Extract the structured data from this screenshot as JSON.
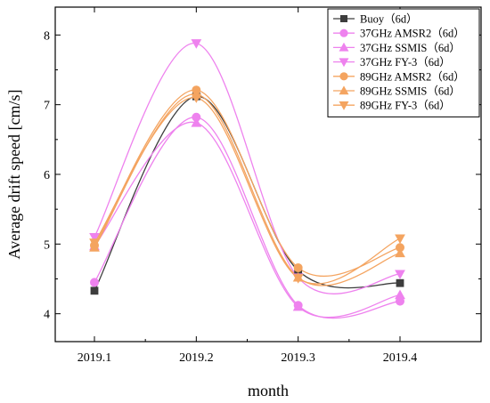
{
  "chart_data": {
    "type": "line",
    "title": "",
    "xlabel": "month",
    "ylabel": "Average drift speed [cm/s]",
    "categories": [
      "2019.1",
      "2019.2",
      "2019.3",
      "2019.4"
    ],
    "ylim": [
      3.6,
      8.4
    ],
    "yticks": [
      4,
      5,
      6,
      7,
      8
    ],
    "grid": false,
    "legend_position": "top-right",
    "series": [
      {
        "name": "Buoy（6d）",
        "values": [
          4.33,
          7.12,
          4.62,
          4.44
        ],
        "color": "#3d3d3d",
        "marker": "square"
      },
      {
        "name": "37GHz AMSR2（6d）",
        "values": [
          4.45,
          6.82,
          4.12,
          4.18
        ],
        "color": "#ee82ee",
        "marker": "circle"
      },
      {
        "name": "37GHz SSMIS（6d）",
        "values": [
          4.97,
          6.74,
          4.1,
          4.27
        ],
        "color": "#ee82ee",
        "marker": "triangle-up"
      },
      {
        "name": "37GHz FY-3（6d）",
        "values": [
          5.1,
          7.88,
          4.52,
          4.57
        ],
        "color": "#ee82ee",
        "marker": "triangle-down"
      },
      {
        "name": "89GHz AMSR2（6d）",
        "values": [
          4.98,
          7.21,
          4.66,
          4.95
        ],
        "color": "#f4a460",
        "marker": "circle"
      },
      {
        "name": "89GHz SSMIS（6d）",
        "values": [
          4.95,
          7.15,
          4.52,
          4.87
        ],
        "color": "#f4a460",
        "marker": "triangle-up"
      },
      {
        "name": "89GHz FY-3（6d）",
        "values": [
          5.02,
          7.1,
          4.51,
          5.08
        ],
        "color": "#f4a460",
        "marker": "triangle-down"
      }
    ]
  }
}
